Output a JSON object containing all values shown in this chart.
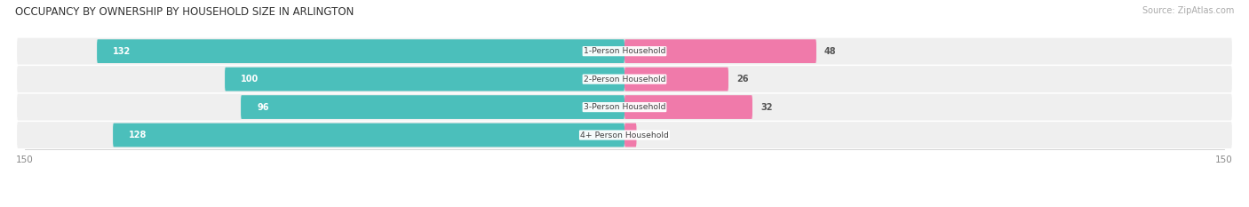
{
  "title": "OCCUPANCY BY OWNERSHIP BY HOUSEHOLD SIZE IN ARLINGTON",
  "source": "Source: ZipAtlas.com",
  "categories": [
    "1-Person Household",
    "2-Person Household",
    "3-Person Household",
    "4+ Person Household"
  ],
  "owner_values": [
    132,
    100,
    96,
    128
  ],
  "renter_values": [
    48,
    26,
    32,
    3
  ],
  "owner_color": "#4bbfbb",
  "renter_color": "#f07aaa",
  "axis_max": 150,
  "row_bg_color": "#efefef",
  "background_color": "#ffffff",
  "title_fontsize": 8.5,
  "label_fontsize": 7.0,
  "tick_fontsize": 7.5,
  "legend_fontsize": 7.5,
  "source_fontsize": 7.0
}
